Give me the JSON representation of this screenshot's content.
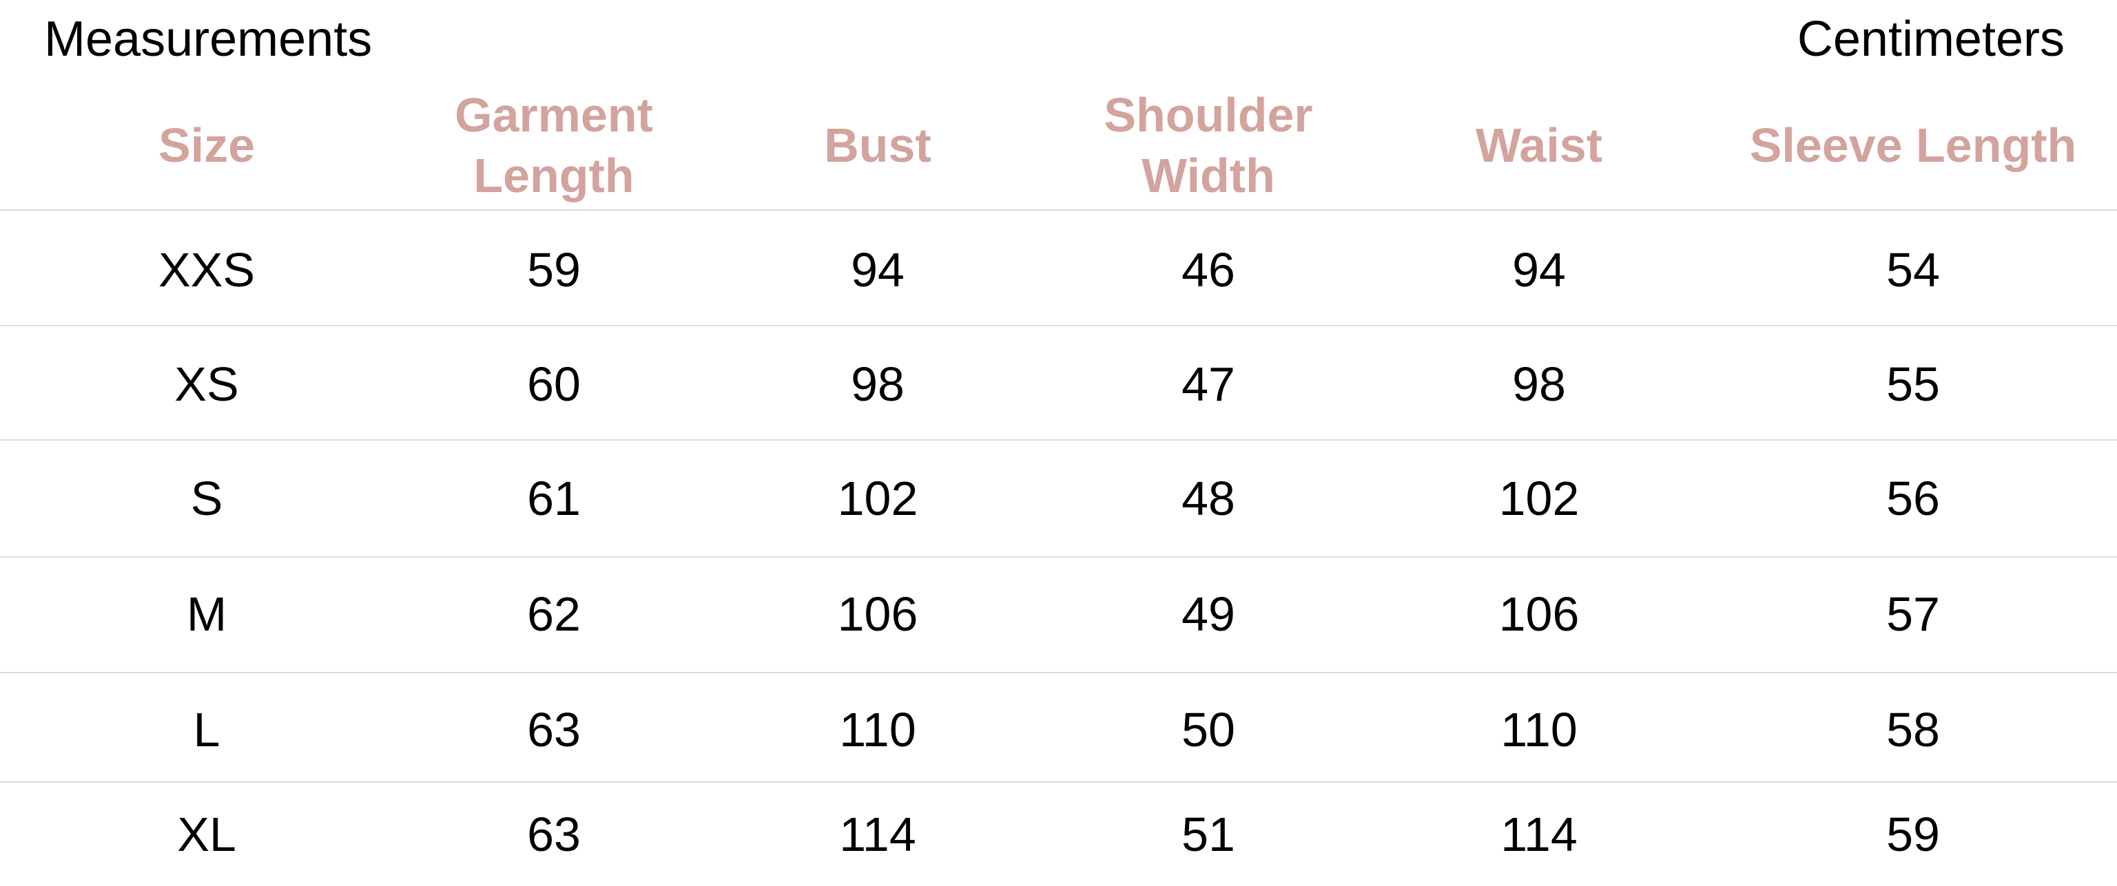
{
  "title": "Measurements",
  "unit": "Centimeters",
  "header_color": "#d3a39d",
  "columns": [
    "Size",
    "Garment\nLength",
    "Bust",
    "Shoulder\nWidth",
    "Waist",
    "Sleeve Length"
  ],
  "rows": [
    [
      "XXS",
      "59",
      "94",
      "46",
      "94",
      "54"
    ],
    [
      "XS",
      "60",
      "98",
      "47",
      "98",
      "55"
    ],
    [
      "S",
      "61",
      "102",
      "48",
      "102",
      "56"
    ],
    [
      "M",
      "62",
      "106",
      "49",
      "106",
      "57"
    ],
    [
      "L",
      "63",
      "110",
      "50",
      "110",
      "58"
    ],
    [
      "XL",
      "63",
      "114",
      "51",
      "114",
      "59"
    ]
  ]
}
